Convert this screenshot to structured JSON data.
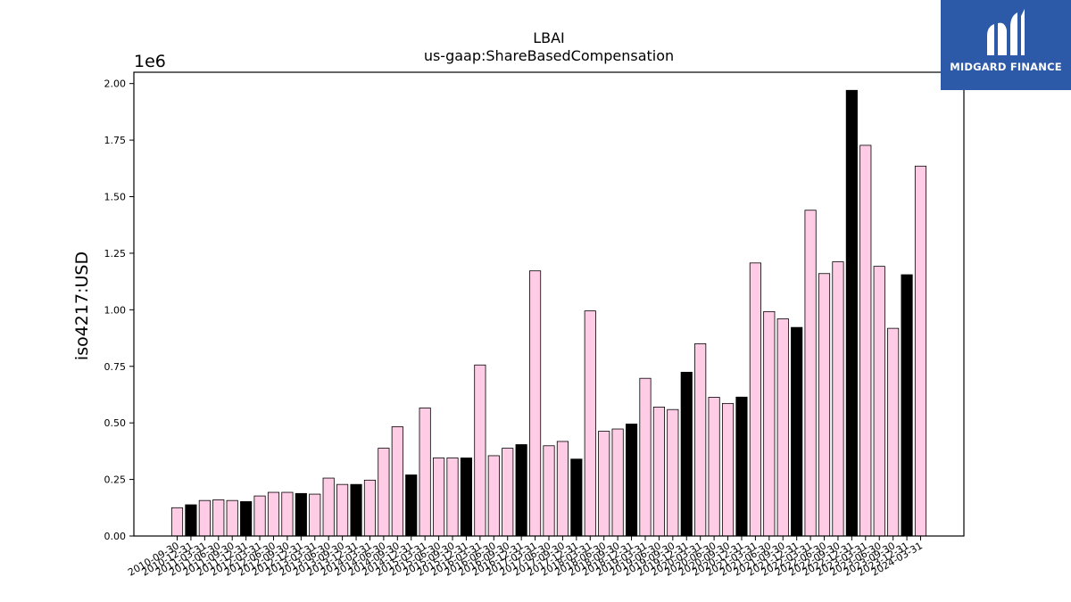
{
  "brand": {
    "name": "MIDGARD FINANCE",
    "bg_color": "#2d5aa8",
    "text_color": "#ffffff"
  },
  "chart_data": {
    "type": "bar",
    "title": "LBAI",
    "subtitle": "us-gaap:ShareBasedCompensation",
    "xlabel": "",
    "ylabel": "iso4217:USD",
    "y_multiplier_label": "1e6",
    "ylim": [
      0,
      2.05
    ],
    "yticks": [
      "0.00",
      "0.25",
      "0.50",
      "0.75",
      "1.00",
      "1.25",
      "1.50",
      "1.75",
      "2.00"
    ],
    "grid": false,
    "colors": {
      "pink": "#ffcce5",
      "black": "#000000",
      "edge": "#000000"
    },
    "categories": [
      "2010-09-30",
      "2010-12-31",
      "2011-03-31",
      "2011-06-30",
      "2011-09-30",
      "2011-12-31",
      "2012-03-31",
      "2012-06-30",
      "2012-09-30",
      "2012-12-31",
      "2013-03-31",
      "2013-06-30",
      "2013-09-30",
      "2013-12-31",
      "2014-03-31",
      "2014-06-30",
      "2014-09-30",
      "2014-12-31",
      "2015-03-31",
      "2015-06-30",
      "2015-09-30",
      "2015-12-31",
      "2016-03-31",
      "2016-06-30",
      "2016-09-30",
      "2016-12-31",
      "2017-03-31",
      "2017-06-30",
      "2017-09-30",
      "2017-12-31",
      "2018-03-31",
      "2018-06-30",
      "2018-09-30",
      "2018-12-31",
      "2019-03-31",
      "2019-06-30",
      "2019-09-30",
      "2019-12-31",
      "2020-03-31",
      "2020-06-30",
      "2020-09-30",
      "2020-12-31",
      "2021-03-31",
      "2021-06-30",
      "2021-09-30",
      "2021-12-31",
      "2022-03-31",
      "2022-06-30",
      "2022-09-30",
      "2022-12-31",
      "2023-03-31",
      "2023-06-30",
      "2023-09-30",
      "2023-12-31",
      "2024-03-31"
    ],
    "values": [
      0.125,
      0.138,
      0.157,
      0.16,
      0.157,
      0.152,
      0.177,
      0.193,
      0.193,
      0.188,
      0.185,
      0.256,
      0.228,
      0.228,
      0.247,
      0.388,
      0.483,
      0.27,
      0.566,
      0.345,
      0.345,
      0.345,
      0.756,
      0.355,
      0.388,
      0.404,
      1.172,
      0.399,
      0.418,
      0.34,
      0.995,
      0.463,
      0.473,
      0.495,
      0.697,
      0.57,
      0.559,
      0.724,
      0.85,
      0.613,
      0.586,
      0.614,
      1.207,
      0.992,
      0.96,
      0.922,
      1.44,
      1.16,
      1.212,
      1.97,
      1.727,
      1.192,
      0.918,
      1.155,
      1.635
    ],
    "bar_colors": [
      "pink",
      "black",
      "pink",
      "pink",
      "pink",
      "black",
      "pink",
      "pink",
      "pink",
      "black",
      "pink",
      "pink",
      "pink",
      "black",
      "pink",
      "pink",
      "pink",
      "black",
      "pink",
      "pink",
      "pink",
      "black",
      "pink",
      "pink",
      "pink",
      "black",
      "pink",
      "pink",
      "pink",
      "black",
      "pink",
      "pink",
      "pink",
      "black",
      "pink",
      "pink",
      "pink",
      "black",
      "pink",
      "pink",
      "pink",
      "black",
      "pink",
      "pink",
      "pink",
      "black",
      "pink",
      "pink",
      "pink",
      "black",
      "pink",
      "pink",
      "pink",
      "black",
      "pink"
    ]
  }
}
